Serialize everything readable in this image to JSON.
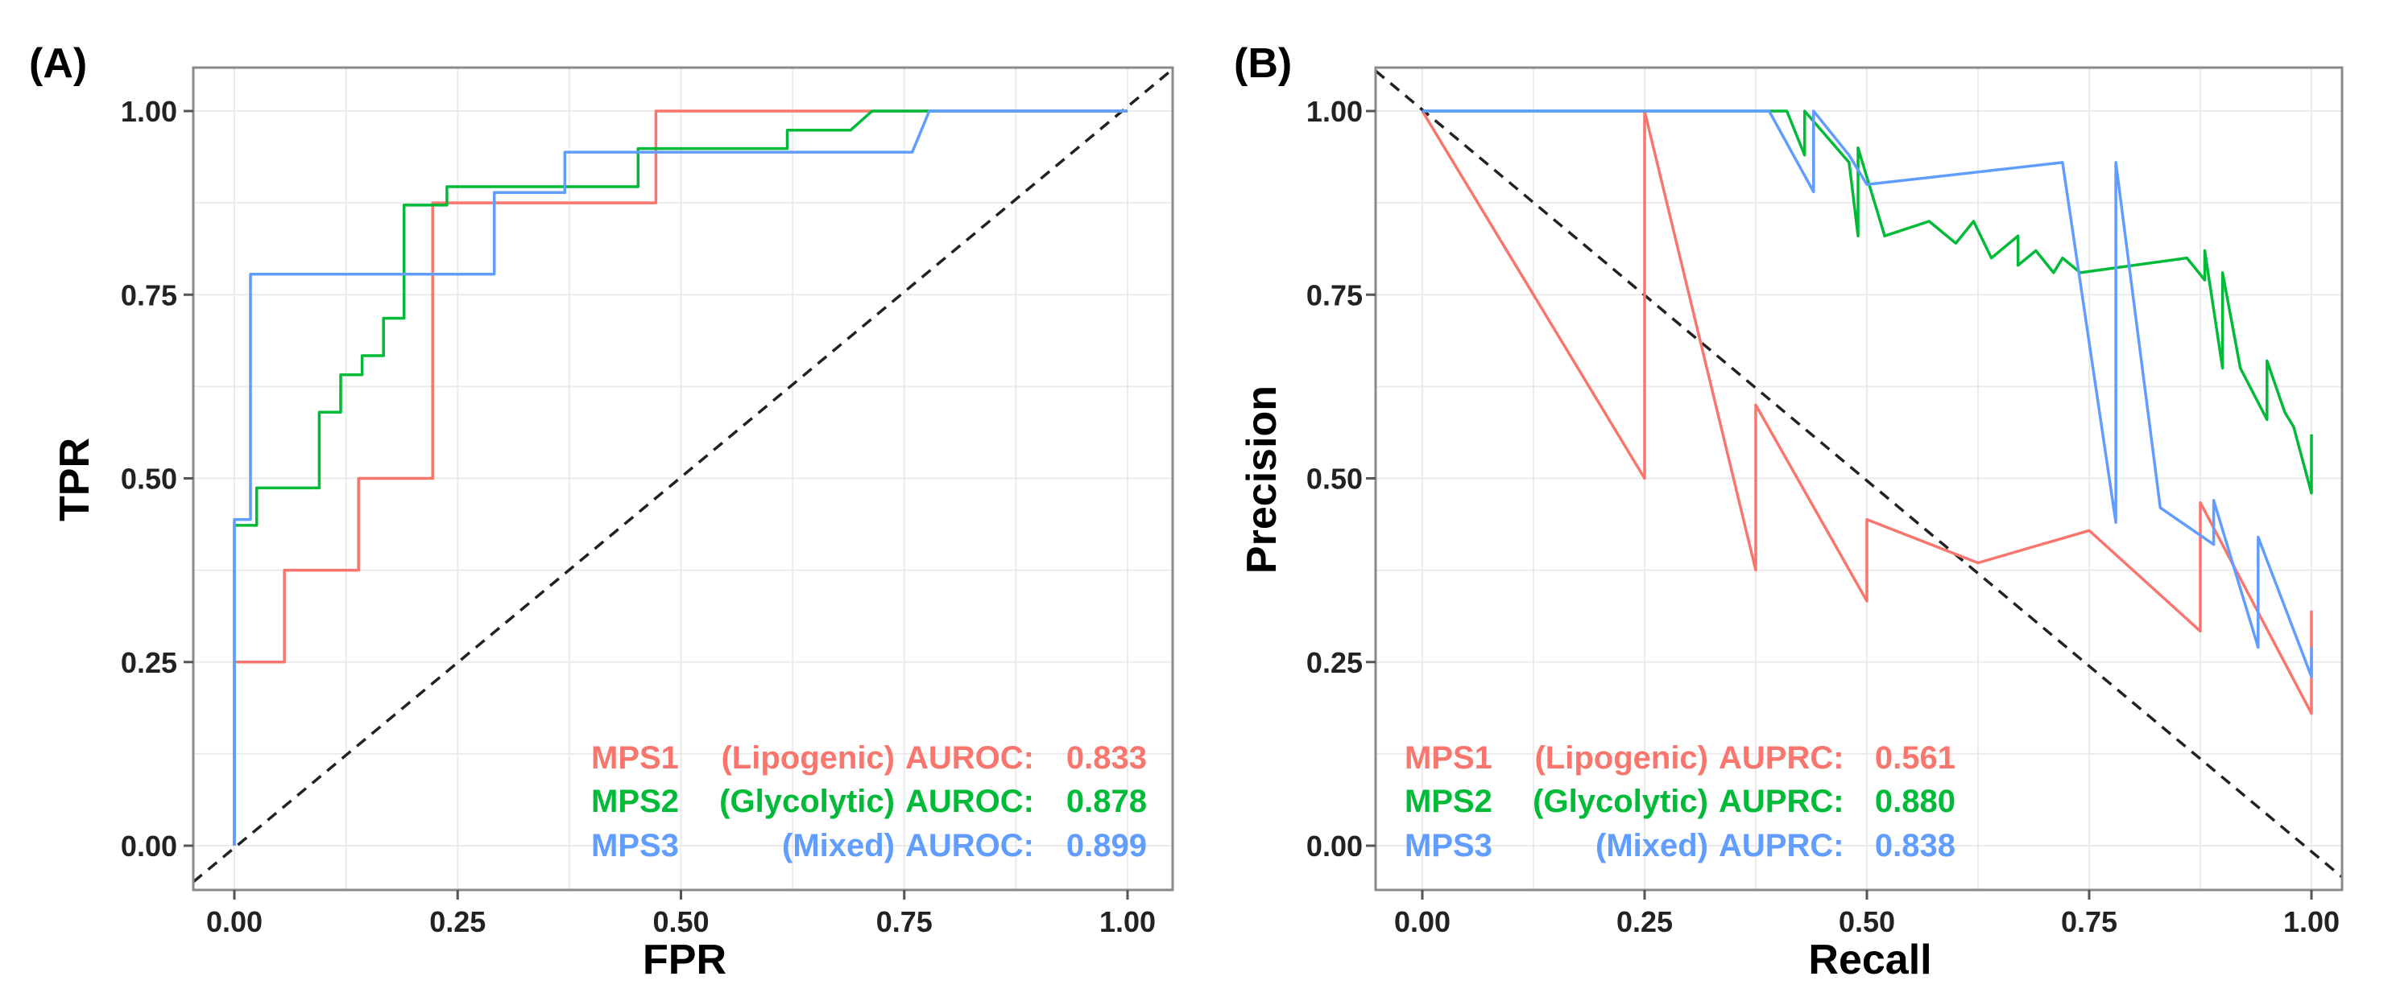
{
  "chart_data": [
    {
      "type": "line",
      "panel_label": "(A)",
      "xlabel": "FPR",
      "ylabel": "TPR",
      "xlim": [
        0,
        1
      ],
      "ylim": [
        0,
        1
      ],
      "xticks": [
        "0.00",
        "0.25",
        "0.50",
        "0.75",
        "1.00"
      ],
      "yticks": [
        "0.00",
        "0.25",
        "0.50",
        "0.75",
        "1.00"
      ],
      "grid": true,
      "diagonal": "y = x",
      "series": [
        {
          "name": "MPS1 (Lipogenic)",
          "color": "#f8766d",
          "metric_label": "AUROC:",
          "metric_value": "0.833",
          "points": [
            [
              0,
              0
            ],
            [
              0,
              0.25
            ],
            [
              0.056,
              0.25
            ],
            [
              0.056,
              0.375
            ],
            [
              0.139,
              0.375
            ],
            [
              0.139,
              0.5
            ],
            [
              0.222,
              0.5
            ],
            [
              0.222,
              0.875
            ],
            [
              0.472,
              0.875
            ],
            [
              0.472,
              1.0
            ],
            [
              1.0,
              1.0
            ]
          ]
        },
        {
          "name": "MPS2 (Glycolytic)",
          "color": "#00ba38",
          "metric_label": "AUROC:",
          "metric_value": "0.878",
          "points": [
            [
              0,
              0
            ],
            [
              0,
              0.436
            ],
            [
              0.025,
              0.436
            ],
            [
              0.025,
              0.487
            ],
            [
              0.095,
              0.487
            ],
            [
              0.095,
              0.59
            ],
            [
              0.119,
              0.59
            ],
            [
              0.119,
              0.641
            ],
            [
              0.143,
              0.641
            ],
            [
              0.143,
              0.667
            ],
            [
              0.167,
              0.667
            ],
            [
              0.167,
              0.718
            ],
            [
              0.19,
              0.718
            ],
            [
              0.19,
              0.872
            ],
            [
              0.238,
              0.872
            ],
            [
              0.238,
              0.897
            ],
            [
              0.452,
              0.897
            ],
            [
              0.452,
              0.949
            ],
            [
              0.619,
              0.949
            ],
            [
              0.619,
              0.974
            ],
            [
              0.69,
              0.974
            ],
            [
              0.714,
              1.0
            ],
            [
              1.0,
              1.0
            ]
          ]
        },
        {
          "name": "MPS3 (Mixed)",
          "color": "#619cff",
          "metric_label": "AUROC:",
          "metric_value": "0.899",
          "points": [
            [
              0,
              0
            ],
            [
              0,
              0.444
            ],
            [
              0.018,
              0.444
            ],
            [
              0.018,
              0.778
            ],
            [
              0.291,
              0.778
            ],
            [
              0.291,
              0.889
            ],
            [
              0.37,
              0.889
            ],
            [
              0.37,
              0.944
            ],
            [
              0.759,
              0.944
            ],
            [
              0.778,
              1.0
            ],
            [
              1.0,
              1.0
            ]
          ]
        }
      ]
    },
    {
      "type": "line",
      "panel_label": "(B)",
      "xlabel": "Recall",
      "ylabel": "Precision",
      "xlim": [
        0,
        1
      ],
      "ylim": [
        0,
        1
      ],
      "xticks": [
        "0.00",
        "0.25",
        "0.50",
        "0.75",
        "1.00"
      ],
      "yticks": [
        "0.00",
        "0.25",
        "0.50",
        "0.75",
        "1.00"
      ],
      "grid": true,
      "diagonal": "y = 1 - x",
      "series": [
        {
          "name": "MPS1 (Lipogenic)",
          "color": "#f8766d",
          "metric_label": "AUPRC:",
          "metric_value": "0.561",
          "points": [
            [
              0,
              1.0
            ],
            [
              0.25,
              0.5
            ],
            [
              0.25,
              1.0
            ],
            [
              0.375,
              0.375
            ],
            [
              0.375,
              0.6
            ],
            [
              0.5,
              0.333
            ],
            [
              0.5,
              0.444
            ],
            [
              0.625,
              0.385
            ],
            [
              0.75,
              0.429
            ],
            [
              0.875,
              0.292
            ],
            [
              0.875,
              0.467
            ],
            [
              1.0,
              0.18
            ],
            [
              1.0,
              0.32
            ]
          ]
        },
        {
          "name": "MPS2 (Glycolytic)",
          "color": "#00ba38",
          "metric_label": "AUPRC:",
          "metric_value": "0.880",
          "points": [
            [
              0,
              1.0
            ],
            [
              0.41,
              1.0
            ],
            [
              0.43,
              0.94
            ],
            [
              0.43,
              1.0
            ],
            [
              0.48,
              0.93
            ],
            [
              0.49,
              0.83
            ],
            [
              0.49,
              0.95
            ],
            [
              0.52,
              0.83
            ],
            [
              0.57,
              0.85
            ],
            [
              0.6,
              0.82
            ],
            [
              0.62,
              0.85
            ],
            [
              0.64,
              0.8
            ],
            [
              0.67,
              0.83
            ],
            [
              0.67,
              0.79
            ],
            [
              0.69,
              0.81
            ],
            [
              0.71,
              0.78
            ],
            [
              0.72,
              0.8
            ],
            [
              0.74,
              0.78
            ],
            [
              0.86,
              0.8
            ],
            [
              0.88,
              0.77
            ],
            [
              0.88,
              0.81
            ],
            [
              0.9,
              0.65
            ],
            [
              0.9,
              0.78
            ],
            [
              0.92,
              0.65
            ],
            [
              0.95,
              0.58
            ],
            [
              0.95,
              0.66
            ],
            [
              0.97,
              0.59
            ],
            [
              0.98,
              0.57
            ],
            [
              1.0,
              0.48
            ],
            [
              1.0,
              0.56
            ]
          ]
        },
        {
          "name": "MPS3 (Mixed)",
          "color": "#619cff",
          "metric_label": "AUPRC:",
          "metric_value": "0.838",
          "points": [
            [
              0,
              1.0
            ],
            [
              0.39,
              1.0
            ],
            [
              0.44,
              0.89
            ],
            [
              0.44,
              1.0
            ],
            [
              0.48,
              0.94
            ],
            [
              0.5,
              0.9
            ],
            [
              0.72,
              0.93
            ],
            [
              0.78,
              0.44
            ],
            [
              0.78,
              0.93
            ],
            [
              0.83,
              0.46
            ],
            [
              0.89,
              0.41
            ],
            [
              0.89,
              0.47
            ],
            [
              0.94,
              0.27
            ],
            [
              0.94,
              0.42
            ],
            [
              1.0,
              0.23
            ],
            [
              1.0,
              0.27
            ]
          ]
        }
      ]
    }
  ]
}
